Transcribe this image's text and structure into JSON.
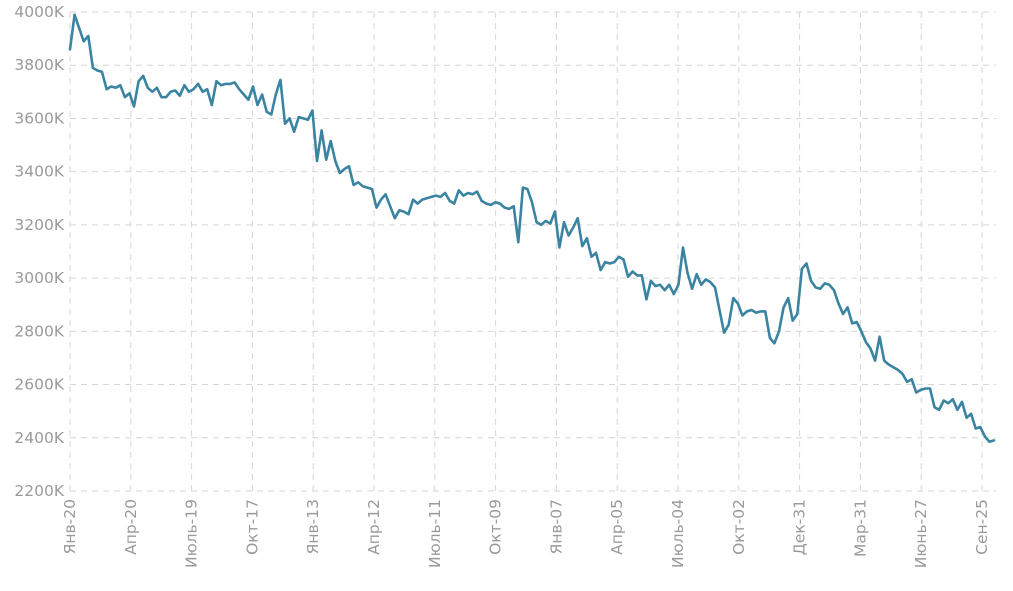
{
  "chart_data": {
    "type": "line",
    "title": "",
    "xlabel": "",
    "ylabel": "",
    "x_tick_labels": [
      "Янв-20",
      "Апр-20",
      "Июль-19",
      "Окт-17",
      "Янв-13",
      "Апр-12",
      "Июль-11",
      "Окт-09",
      "Янв-07",
      "Апр-05",
      "Июль-04",
      "Окт-02",
      "Дек-31",
      "Мар-31",
      "Июнь-27",
      "Сен-25"
    ],
    "y_tick_labels": [
      "4000K",
      "3800K",
      "3600K",
      "3400K",
      "3200K",
      "3000K",
      "2800K",
      "2600K",
      "2400K",
      "2200K"
    ],
    "y_ticks": [
      4000,
      3800,
      3600,
      3400,
      3200,
      3000,
      2800,
      2600,
      2400,
      2200
    ],
    "ylim": [
      2200,
      4000
    ],
    "x_range": [
      0,
      260
    ],
    "grid": true,
    "legend": "none",
    "color": "#3a84a1",
    "series": [
      {
        "values": [
          3860,
          3990,
          3940,
          3890,
          3910,
          3790,
          3780,
          3775,
          3710,
          3720,
          3715,
          3725,
          3680,
          3695,
          3645,
          3740,
          3760,
          3715,
          3700,
          3715,
          3680,
          3680,
          3700,
          3705,
          3685,
          3725,
          3700,
          3710,
          3730,
          3700,
          3710,
          3650,
          3740,
          3725,
          3730,
          3730,
          3735,
          3710,
          3690,
          3670,
          3720,
          3650,
          3690,
          3625,
          3615,
          3690,
          3745,
          3580,
          3600,
          3550,
          3605,
          3600,
          3595,
          3630,
          3440,
          3555,
          3445,
          3515,
          3440,
          3395,
          3410,
          3420,
          3350,
          3360,
          3345,
          3340,
          3335,
          3265,
          3295,
          3315,
          3270,
          3225,
          3255,
          3250,
          3240,
          3295,
          3280,
          3295,
          3300,
          3305,
          3310,
          3305,
          3320,
          3290,
          3280,
          3330,
          3310,
          3320,
          3315,
          3325,
          3290,
          3280,
          3275,
          3285,
          3280,
          3265,
          3260,
          3270,
          3135,
          3340,
          3335,
          3285,
          3210,
          3200,
          3215,
          3205,
          3250,
          3115,
          3210,
          3160,
          3190,
          3225,
          3120,
          3150,
          3080,
          3095,
          3030,
          3060,
          3055,
          3060,
          3080,
          3070,
          3005,
          3025,
          3010,
          3010,
          2920,
          2990,
          2970,
          2975,
          2955,
          2975,
          2940,
          2975,
          3115,
          3020,
          2960,
          3015,
          2975,
          2995,
          2985,
          2965,
          2880,
          2795,
          2825,
          2925,
          2905,
          2860,
          2875,
          2880,
          2870,
          2875,
          2875,
          2775,
          2755,
          2800,
          2890,
          2925,
          2840,
          2865,
          3035,
          3055,
          2990,
          2965,
          2960,
          2980,
          2975,
          2955,
          2905,
          2865,
          2890,
          2830,
          2835,
          2800,
          2760,
          2735,
          2690,
          2780,
          2690,
          2675,
          2665,
          2655,
          2640,
          2610,
          2620,
          2570,
          2580,
          2585,
          2585,
          2515,
          2505,
          2540,
          2530,
          2545,
          2505,
          2535,
          2475,
          2490,
          2435,
          2440,
          2405,
          2385,
          2390
        ]
      }
    ]
  }
}
